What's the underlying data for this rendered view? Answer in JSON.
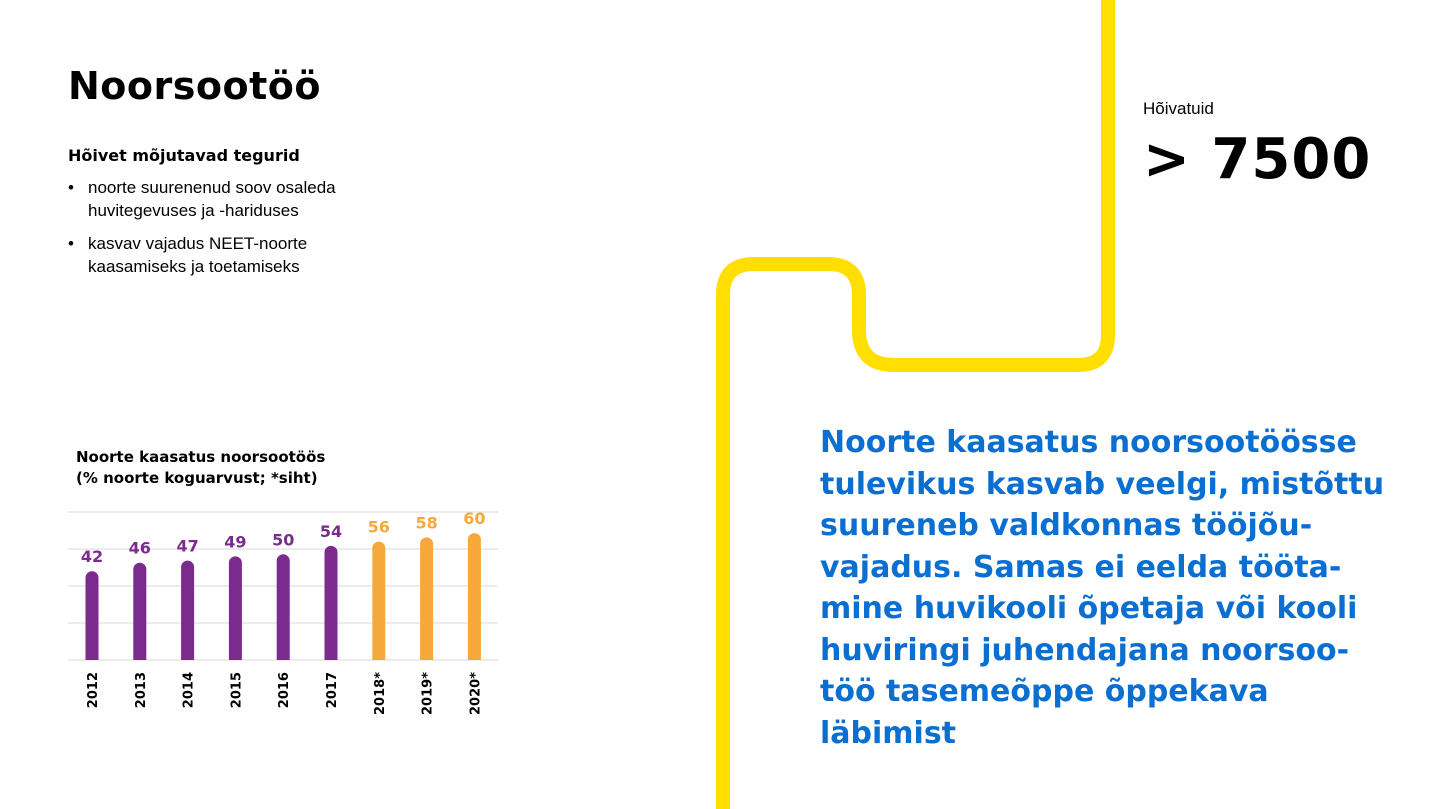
{
  "title": "Noorsootöö",
  "factors": {
    "heading": "Hõivet mõjutavad tegurid",
    "bullet": "•",
    "items": [
      [
        "noorte suurenenud soov osaleda",
        "huvitegevuses ja -hariduses"
      ],
      [
        "kasvav vajadus NEET-noorte",
        "kaasamiseks ja toetamiseks"
      ]
    ]
  },
  "stat": {
    "label": "Hõivatuid",
    "value": "> 7500"
  },
  "quote": {
    "lines": [
      "Noorte kaasatus noorsootöösse",
      "tulevikus kasvab veelgi, mistõttu",
      "suureneb valdkonnas tööjõu-",
      "vajadus. Samas ei eelda tööta-",
      "mine huvikooli õpetaja või kooli",
      "huviringi juhendajana noorsoo-",
      "töö tasemeõppe õppekava",
      "läbimist"
    ],
    "color": "#0a6fd1"
  },
  "colors": {
    "actual": "#7b2a8e",
    "target": "#f7a83a",
    "decor_line": "#ffde00",
    "grid": "#d8d8d8"
  },
  "chart_data": {
    "type": "bar",
    "title": [
      "Noorte kaasatus noorsootöös",
      "(% noorte koguarvust; *siht)"
    ],
    "categories": [
      "2012",
      "2013",
      "2014",
      "2015",
      "2016",
      "2017",
      "2018*",
      "2019*",
      "2020*"
    ],
    "values": [
      42,
      46,
      47,
      49,
      50,
      54,
      56,
      58,
      60
    ],
    "value_labels": [
      "42",
      "46",
      "47",
      "49",
      "50",
      "54",
      "56",
      "58",
      "60"
    ],
    "is_target": [
      false,
      false,
      false,
      false,
      false,
      false,
      true,
      true,
      true
    ],
    "ylim": [
      0,
      70
    ],
    "grid": true,
    "legend": "none"
  }
}
